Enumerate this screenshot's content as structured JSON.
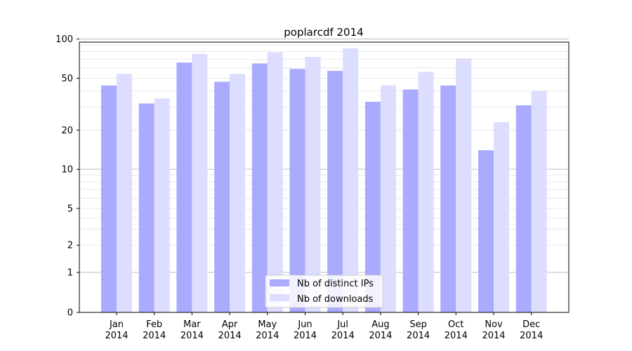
{
  "chart_data": {
    "type": "bar",
    "title": "poplarcdf 2014",
    "xlabel": "",
    "ylabel": "",
    "yscale": "symlog",
    "yticks": [
      "0",
      "1",
      "2",
      "5",
      "10",
      "20",
      "50",
      "100"
    ],
    "ytick_values": [
      0,
      1,
      2,
      5,
      10,
      20,
      50,
      100
    ],
    "ylim": [
      0,
      105
    ],
    "categories": [
      [
        "Jan",
        "2014"
      ],
      [
        "Feb",
        "2014"
      ],
      [
        "Mar",
        "2014"
      ],
      [
        "Apr",
        "2014"
      ],
      [
        "May",
        "2014"
      ],
      [
        "Jun",
        "2014"
      ],
      [
        "Jul",
        "2014"
      ],
      [
        "Aug",
        "2014"
      ],
      [
        "Sep",
        "2014"
      ],
      [
        "Oct",
        "2014"
      ],
      [
        "Nov",
        "2014"
      ],
      [
        "Dec",
        "2014"
      ]
    ],
    "series": [
      {
        "name": "Nb of distinct IPs",
        "color": "#aaaaff",
        "values": [
          44,
          32,
          66,
          47,
          65,
          59,
          57,
          33,
          41,
          44,
          14,
          31
        ]
      },
      {
        "name": "Nb of downloads",
        "color": "#ddddff",
        "values": [
          54,
          35,
          77,
          54,
          79,
          73,
          85,
          44,
          56,
          71,
          23,
          40
        ]
      }
    ],
    "legend_position": "lower-center",
    "grid": true
  }
}
